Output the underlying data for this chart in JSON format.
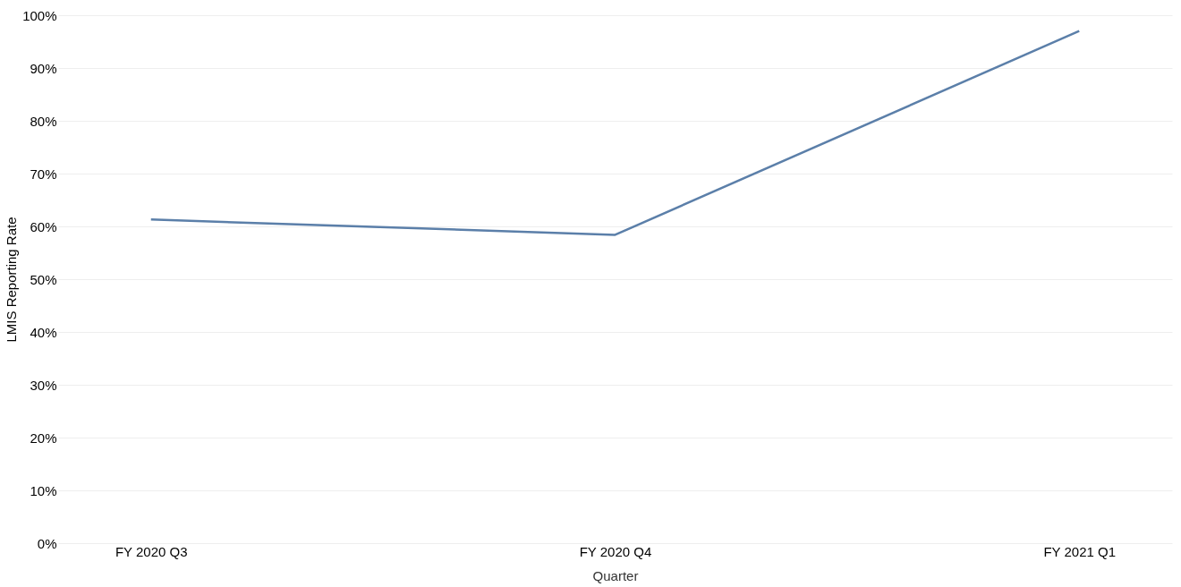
{
  "chart_data": {
    "type": "line",
    "xlabel": "Quarter",
    "ylabel": "LMIS Reporting Rate",
    "categories": [
      "FY 2020 Q3",
      "FY 2020 Q4",
      "FY 2021 Q1"
    ],
    "series": [
      {
        "color": "#5b7fa9",
        "values": [
          61.3,
          58.4,
          97.0
        ]
      }
    ],
    "ylim": [
      0,
      100
    ],
    "yticks": [
      {
        "value": 0,
        "label": "0%"
      },
      {
        "value": 10,
        "label": "10%"
      },
      {
        "value": 20,
        "label": "20%"
      },
      {
        "value": 30,
        "label": "30%"
      },
      {
        "value": 40,
        "label": "40%"
      },
      {
        "value": 50,
        "label": "50%"
      },
      {
        "value": 60,
        "label": "60%"
      },
      {
        "value": 70,
        "label": "70%"
      },
      {
        "value": 80,
        "label": "80%"
      },
      {
        "value": 90,
        "label": "90%"
      },
      {
        "value": 100,
        "label": "100%"
      }
    ],
    "grid": "y",
    "line_style": "solid",
    "marker": "none"
  }
}
